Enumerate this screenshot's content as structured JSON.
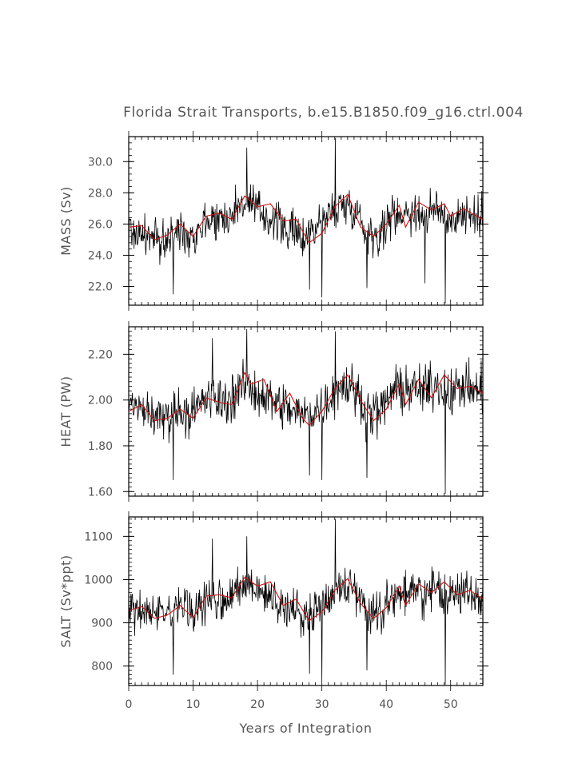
{
  "chart_data": [
    {
      "type": "line",
      "title": "Florida Strait Transports, b.e15.B1850.f09_g16.ctrl.004",
      "xlabel": "",
      "ylabel": "MASS (Sv)",
      "xlim": [
        0,
        55
      ],
      "ylim": [
        20.8,
        31.6
      ],
      "yticks": [
        22.0,
        24.0,
        26.0,
        28.0,
        30.0
      ],
      "ytick_labels": [
        "22.0",
        "24.0",
        "26.0",
        "28.0",
        "30.0"
      ],
      "ytick_minor": 0.4,
      "x_ticks_shown": false,
      "series": [
        {
          "role": "monthly",
          "color": "#000000",
          "anchors": [
            [
              0,
              25.6
            ],
            [
              3,
              25.2
            ],
            [
              5,
              24.8
            ],
            [
              8,
              25.6
            ],
            [
              10,
              25.3
            ],
            [
              12,
              26.3
            ],
            [
              15,
              26.4
            ],
            [
              18,
              27.4
            ],
            [
              21,
              26.6
            ],
            [
              24,
              25.8
            ],
            [
              27,
              25.1
            ],
            [
              30,
              26.2
            ],
            [
              33,
              27.2
            ],
            [
              35,
              27.1
            ],
            [
              37,
              25.5
            ],
            [
              39,
              25.3
            ],
            [
              41,
              26.6
            ],
            [
              43,
              26.8
            ],
            [
              46,
              26.6
            ],
            [
              48,
              26.9
            ],
            [
              50,
              26.3
            ],
            [
              52,
              26.7
            ],
            [
              55,
              26.3
            ]
          ],
          "noise": 1.1,
          "extremes": [
            [
              18.3,
              30.9
            ],
            [
              32.1,
              31.5
            ],
            [
              49.2,
              20.9
            ],
            [
              6.9,
              21.5
            ],
            [
              30.0,
              21.3
            ],
            [
              37.0,
              21.9
            ],
            [
              28.1,
              21.8
            ],
            [
              46.0,
              22.2
            ]
          ]
        },
        {
          "role": "running-mean",
          "color": "#cc1111",
          "values": [
            [
              0,
              25.8
            ],
            [
              2,
              25.9
            ],
            [
              4,
              25.0
            ],
            [
              6,
              25.3
            ],
            [
              8,
              26.0
            ],
            [
              10,
              25.2
            ],
            [
              12,
              26.5
            ],
            [
              14,
              26.7
            ],
            [
              16,
              26.3
            ],
            [
              18,
              27.8
            ],
            [
              20,
              27.1
            ],
            [
              22,
              27.3
            ],
            [
              24,
              26.2
            ],
            [
              26,
              26.3
            ],
            [
              28,
              24.8
            ],
            [
              30,
              25.4
            ],
            [
              32,
              27.1
            ],
            [
              34,
              27.9
            ],
            [
              36,
              25.8
            ],
            [
              38,
              25.2
            ],
            [
              40,
              26.0
            ],
            [
              42,
              27.2
            ],
            [
              43,
              25.8
            ],
            [
              45,
              27.4
            ],
            [
              47,
              26.9
            ],
            [
              49,
              27.3
            ],
            [
              50,
              26.5
            ],
            [
              52,
              27.0
            ],
            [
              54,
              26.5
            ],
            [
              55,
              26.3
            ]
          ]
        }
      ]
    },
    {
      "type": "line",
      "title": "",
      "xlabel": "",
      "ylabel": "HEAT (PW)",
      "xlim": [
        0,
        55
      ],
      "ylim": [
        1.58,
        2.32
      ],
      "yticks": [
        1.6,
        1.8,
        2.0,
        2.2
      ],
      "ytick_labels": [
        "1.60",
        "1.80",
        "2.00",
        "2.20"
      ],
      "ytick_minor": 0.02,
      "x_ticks_shown": false,
      "series": [
        {
          "role": "monthly",
          "color": "#000000",
          "anchors": [
            [
              0,
              1.96
            ],
            [
              3,
              1.95
            ],
            [
              5,
              1.92
            ],
            [
              8,
              1.96
            ],
            [
              10,
              1.94
            ],
            [
              12,
              2.01
            ],
            [
              15,
              1.99
            ],
            [
              18,
              2.06
            ],
            [
              21,
              2.02
            ],
            [
              24,
              1.97
            ],
            [
              27,
              1.93
            ],
            [
              30,
              1.97
            ],
            [
              33,
              2.07
            ],
            [
              35,
              2.05
            ],
            [
              37,
              1.95
            ],
            [
              39,
              1.94
            ],
            [
              41,
              2.04
            ],
            [
              43,
              2.05
            ],
            [
              46,
              2.04
            ],
            [
              48,
              2.07
            ],
            [
              50,
              2.03
            ],
            [
              52,
              2.06
            ],
            [
              55,
              2.03
            ]
          ],
          "noise": 0.085,
          "extremes": [
            [
              18.3,
              2.31
            ],
            [
              32.1,
              2.3
            ],
            [
              49.2,
              1.59
            ],
            [
              6.9,
              1.65
            ],
            [
              30.0,
              1.65
            ],
            [
              37.0,
              1.66
            ],
            [
              28.1,
              1.67
            ],
            [
              13.0,
              2.27
            ]
          ]
        },
        {
          "role": "running-mean",
          "color": "#cc1111",
          "values": [
            [
              0,
              1.95
            ],
            [
              2,
              1.98
            ],
            [
              4,
              1.91
            ],
            [
              6,
              1.92
            ],
            [
              8,
              1.96
            ],
            [
              10,
              1.92
            ],
            [
              12,
              2.01
            ],
            [
              14,
              1.99
            ],
            [
              16,
              1.98
            ],
            [
              18,
              2.12
            ],
            [
              19,
              2.07
            ],
            [
              21,
              2.09
            ],
            [
              23,
              1.95
            ],
            [
              25,
              2.03
            ],
            [
              27,
              1.92
            ],
            [
              28,
              1.89
            ],
            [
              30,
              1.95
            ],
            [
              32,
              2.05
            ],
            [
              34,
              2.11
            ],
            [
              36,
              2.0
            ],
            [
              38,
              1.91
            ],
            [
              40,
              1.96
            ],
            [
              42,
              2.07
            ],
            [
              43,
              1.98
            ],
            [
              45,
              2.09
            ],
            [
              47,
              2.01
            ],
            [
              49,
              2.11
            ],
            [
              51,
              2.05
            ],
            [
              53,
              2.06
            ],
            [
              55,
              2.03
            ]
          ]
        }
      ]
    },
    {
      "type": "line",
      "title": "",
      "xlabel": "Years of Integration",
      "ylabel": "SALT (Sv*ppt)",
      "xlim": [
        0,
        55
      ],
      "ylim": [
        755,
        1145
      ],
      "yticks": [
        800,
        900,
        1000,
        1100
      ],
      "ytick_labels": [
        "800",
        "900",
        "1000",
        "1100"
      ],
      "ytick_minor": 10,
      "xticks": [
        0,
        10,
        20,
        30,
        40,
        50
      ],
      "xtick_labels": [
        "0",
        "10",
        "20",
        "30",
        "40",
        "50"
      ],
      "xtick_minor": 1,
      "x_ticks_shown": true,
      "series": [
        {
          "role": "monthly",
          "color": "#000000",
          "anchors": [
            [
              0,
              930
            ],
            [
              3,
              925
            ],
            [
              5,
              910
            ],
            [
              8,
              935
            ],
            [
              10,
              922
            ],
            [
              12,
              955
            ],
            [
              15,
              955
            ],
            [
              18,
              985
            ],
            [
              21,
              965
            ],
            [
              24,
              940
            ],
            [
              27,
              915
            ],
            [
              30,
              945
            ],
            [
              33,
              985
            ],
            [
              35,
              980
            ],
            [
              37,
              930
            ],
            [
              39,
              925
            ],
            [
              41,
              965
            ],
            [
              43,
              970
            ],
            [
              46,
              965
            ],
            [
              48,
              980
            ],
            [
              50,
              960
            ],
            [
              52,
              975
            ],
            [
              55,
              960
            ]
          ],
          "noise": 40,
          "extremes": [
            [
              18.3,
              1100
            ],
            [
              32.1,
              1140
            ],
            [
              49.2,
              757
            ],
            [
              6.9,
              780
            ],
            [
              30.0,
              768
            ],
            [
              37.0,
              790
            ],
            [
              28.1,
              782
            ],
            [
              13.0,
              1095
            ]
          ]
        },
        {
          "role": "running-mean",
          "color": "#cc1111",
          "values": [
            [
              0,
              928
            ],
            [
              2,
              938
            ],
            [
              4,
              910
            ],
            [
              6,
              918
            ],
            [
              8,
              940
            ],
            [
              10,
              912
            ],
            [
              12,
              962
            ],
            [
              14,
              965
            ],
            [
              16,
              958
            ],
            [
              18,
              1005
            ],
            [
              20,
              985
            ],
            [
              22,
              995
            ],
            [
              24,
              940
            ],
            [
              26,
              955
            ],
            [
              28,
              905
            ],
            [
              30,
              925
            ],
            [
              32,
              975
            ],
            [
              34,
              1002
            ],
            [
              36,
              945
            ],
            [
              38,
              910
            ],
            [
              40,
              935
            ],
            [
              42,
              985
            ],
            [
              43,
              940
            ],
            [
              45,
              990
            ],
            [
              47,
              970
            ],
            [
              49,
              995
            ],
            [
              51,
              965
            ],
            [
              53,
              975
            ],
            [
              55,
              955
            ]
          ]
        }
      ]
    }
  ]
}
